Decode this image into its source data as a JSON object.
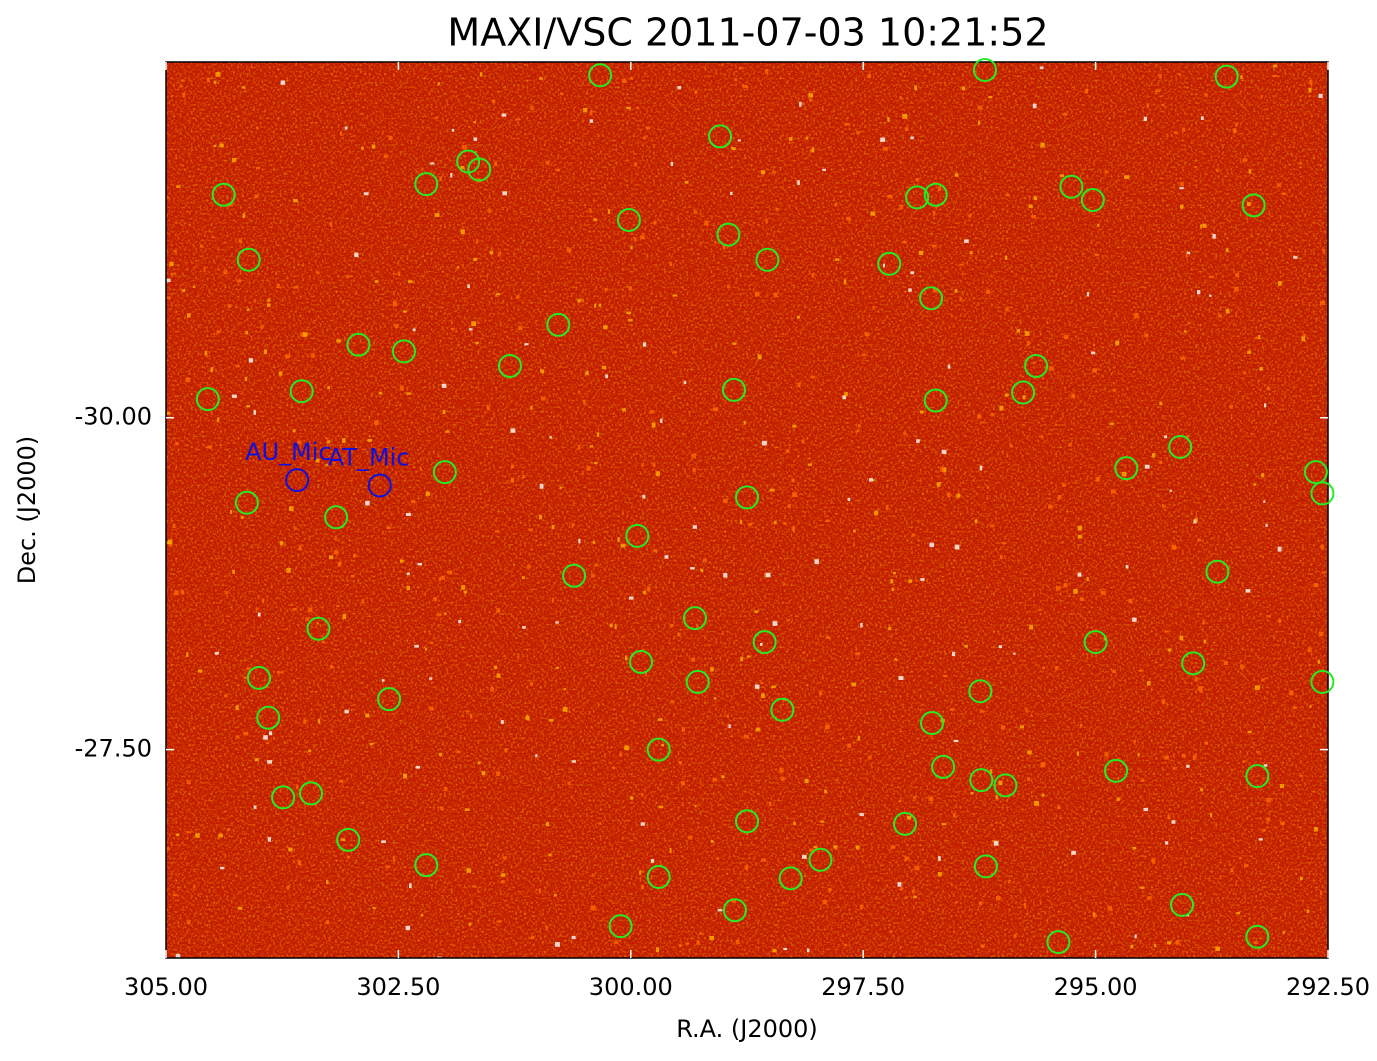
{
  "chart_data": {
    "type": "scatter",
    "title": "MAXI/VSC 2011-07-03 10:21:52",
    "xlabel": "R.A. (J2000)",
    "ylabel": "Dec. (J2000)",
    "xlim": [
      305,
      292.5
    ],
    "ylim": [
      -25.93,
      -32.68
    ],
    "xticks": [
      {
        "value": 305,
        "label": "305.00"
      },
      {
        "value": 302.5,
        "label": "302.50"
      },
      {
        "value": 300,
        "label": "300.00"
      },
      {
        "value": 297.5,
        "label": "297.50"
      },
      {
        "value": 295,
        "label": "295.00"
      },
      {
        "value": 292.5,
        "label": "292.50"
      }
    ],
    "yticks": [
      {
        "value": -30,
        "label": "-30.00"
      },
      {
        "value": -27.5,
        "label": "-27.50"
      }
    ],
    "series": [
      {
        "color": "#22ee22",
        "x": [
          300.33,
          296.19,
          293.59,
          299.04,
          301.75,
          301.63,
          302.2,
          304.38,
          295.26,
          295.03,
          296.92,
          296.72,
          293.3,
          300.02,
          298.95,
          298.53,
          304.11,
          297.22,
          296.77,
          300.78,
          302.93,
          302.44,
          301.3,
          295.64,
          295.78,
          304.55,
          303.54,
          298.89,
          296.72,
          294.09,
          302.0,
          294.67,
          292.63,
          292.56,
          304.13,
          303.17,
          298.75,
          299.93,
          300.61,
          293.69,
          303.36,
          299.31,
          298.56,
          295.0,
          299.89,
          293.95,
          304.0,
          299.28,
          292.56,
          296.24,
          302.6,
          298.37,
          303.9,
          296.76,
          299.7,
          296.64,
          294.78,
          293.26,
          296.23,
          295.97,
          303.74,
          303.44,
          298.75,
          297.05,
          303.04,
          297.96,
          302.2,
          296.18,
          299.7,
          298.28,
          294.07,
          298.88,
          300.11,
          295.4,
          293.26
        ],
        "values": [
          -32.58,
          -32.62,
          -32.57,
          -32.12,
          -31.93,
          -31.87,
          -31.76,
          -31.68,
          -31.74,
          -31.64,
          -31.66,
          -31.68,
          -31.6,
          -31.49,
          -31.38,
          -31.19,
          -31.19,
          -31.16,
          -30.9,
          -30.7,
          -30.55,
          -30.5,
          -30.39,
          -30.39,
          -30.19,
          -30.14,
          -30.2,
          -30.21,
          -30.13,
          -29.78,
          -29.59,
          -29.62,
          -29.59,
          -29.43,
          -29.36,
          -29.25,
          -29.4,
          -29.11,
          -28.81,
          -28.84,
          -28.41,
          -28.49,
          -28.31,
          -28.31,
          -28.16,
          -28.15,
          -28.04,
          -28.01,
          -28.01,
          -27.94,
          -27.88,
          -27.8,
          -27.74,
          -27.7,
          -27.5,
          -27.37,
          -27.34,
          -27.3,
          -27.27,
          -27.23,
          -27.14,
          -27.17,
          -26.96,
          -26.94,
          -26.82,
          -26.67,
          -26.63,
          -26.62,
          -26.54,
          -26.53,
          -26.33,
          -26.29,
          -26.17,
          -26.05,
          -26.09
        ]
      },
      {
        "color": "#1010dd",
        "x": [
          303.59,
          302.7
        ],
        "values": [
          -29.53,
          -29.49
        ],
        "labels": [
          "AU_Mic",
          "AT_Mic"
        ]
      }
    ]
  }
}
